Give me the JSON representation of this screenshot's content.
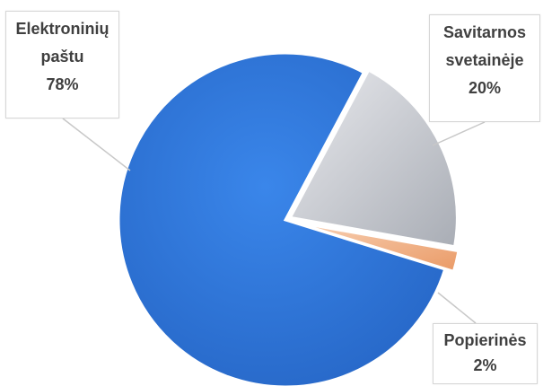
{
  "chart_data": {
    "type": "pie",
    "title": "",
    "slices": [
      {
        "label_lines": [
          "Elektroninių",
          "paštu"
        ],
        "value": 78,
        "value_label": "78%",
        "color": "#2f72d3"
      },
      {
        "label_lines": [
          "Savitarnos",
          "svetainėje"
        ],
        "value": 20,
        "value_label": "20%",
        "color": "#c4c7cd"
      },
      {
        "label_lines": [
          "Popierinės"
        ],
        "value": 2,
        "value_label": "2%",
        "color": "#f2b38a"
      }
    ]
  }
}
